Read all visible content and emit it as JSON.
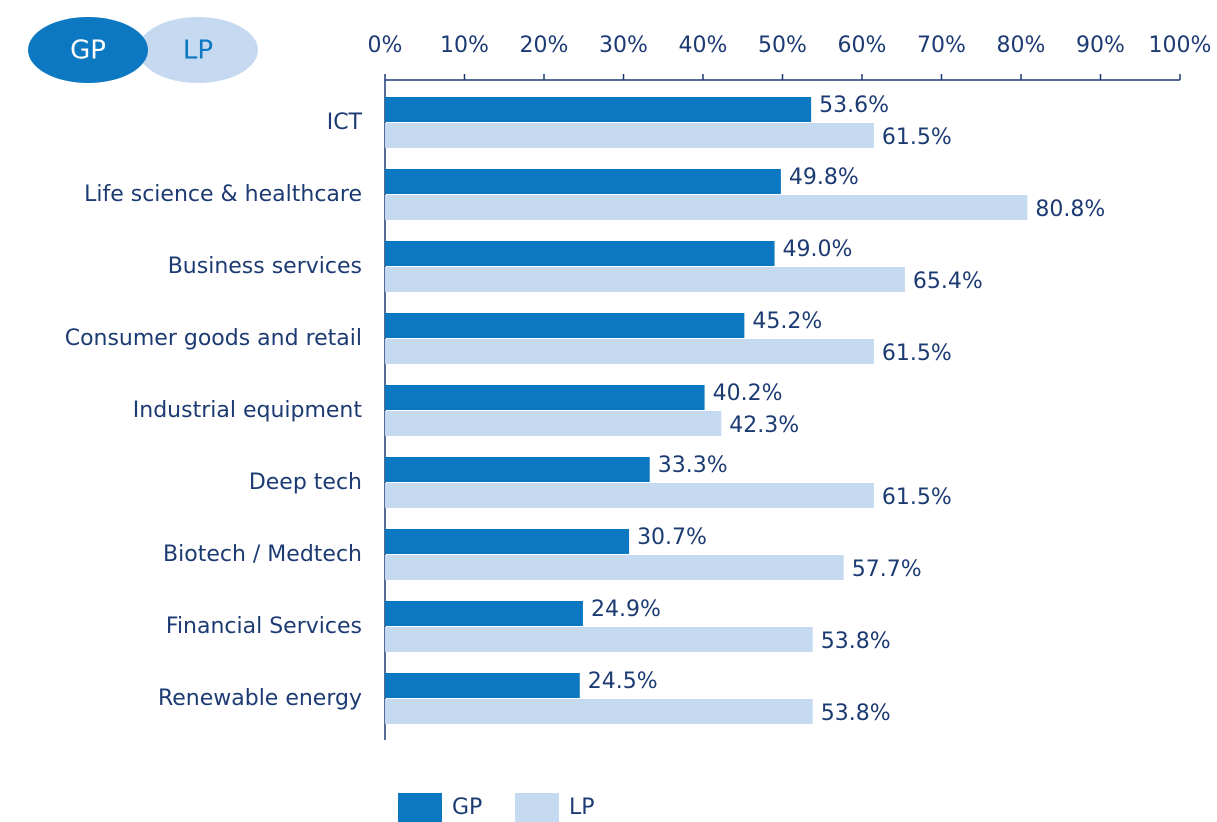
{
  "chart_data": {
    "type": "hbar",
    "categories": [
      "ICT",
      "Life science & healthcare",
      "Business services",
      "Consumer goods and retail",
      "Industrial equipment",
      "Deep tech",
      "Biotech / Medtech",
      "Financial Services",
      "Renewable energy"
    ],
    "series": [
      {
        "name": "GP",
        "color": "#0b78c1",
        "values": [
          53.6,
          49.8,
          49.0,
          45.2,
          40.2,
          33.3,
          30.7,
          24.9,
          24.5
        ],
        "value_labels": [
          "53.6%",
          "49.8%",
          "49.0%",
          "45.2%",
          "40.2%",
          "33.3%",
          "30.7%",
          "24.9%",
          "24.5%"
        ]
      },
      {
        "name": "LP",
        "color": "#c5d9f0",
        "values": [
          61.5,
          80.8,
          65.4,
          61.5,
          42.3,
          61.5,
          57.7,
          53.8,
          53.8
        ],
        "value_labels": [
          "61.5%",
          "80.8%",
          "65.4%",
          "61.5%",
          "42.3%",
          "61.5%",
          "57.7%",
          "53.8%",
          "53.8%"
        ]
      }
    ],
    "xlim": [
      0,
      100
    ],
    "xticks": [
      {
        "value": 0,
        "label": "0%"
      },
      {
        "value": 10,
        "label": "10%"
      },
      {
        "value": 20,
        "label": "20%"
      },
      {
        "value": 30,
        "label": "30%"
      },
      {
        "value": 40,
        "label": "40%"
      },
      {
        "value": 50,
        "label": "50%"
      },
      {
        "value": 60,
        "label": "60%"
      },
      {
        "value": 70,
        "label": "70%"
      },
      {
        "value": 80,
        "label": "80%"
      },
      {
        "value": 90,
        "label": "90%"
      },
      {
        "value": 100,
        "label": "100%"
      }
    ],
    "legend": "bottom"
  }
}
